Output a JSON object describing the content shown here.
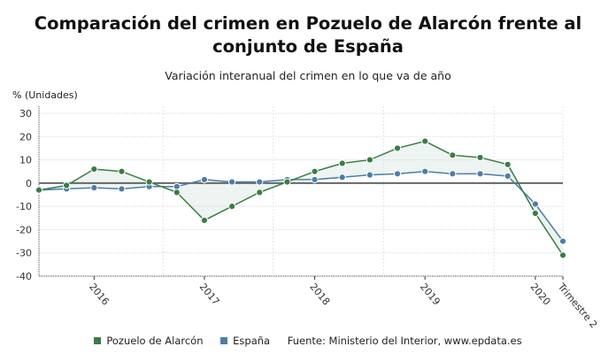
{
  "title": "Comparación del crimen en Pozuelo de Alarcón frente al conjunto de España",
  "subtitle": "Variación interanual del crimen en lo que va de año",
  "legend_source": "Fuente: Ministerio del Interior, www.epdata.es",
  "chart_data": {
    "type": "line",
    "title": "Comparación del crimen en Pozuelo de Alarcón frente al conjunto de España",
    "subtitle": "Variación interanual del crimen en lo que va de año",
    "ylabel": "% (Unidades)",
    "xlabel": "",
    "ylim": [
      -40,
      30
    ],
    "yticks": [
      30,
      20,
      10,
      0,
      -10,
      -20,
      -30,
      -40
    ],
    "x_tick_labels": [
      {
        "index": 2,
        "label": "2016"
      },
      {
        "index": 6,
        "label": "2017"
      },
      {
        "index": 10,
        "label": "2018"
      },
      {
        "index": 14,
        "label": "2019"
      },
      {
        "index": 18,
        "label": "2020"
      },
      {
        "index": 19,
        "label": "Trimestre 2"
      }
    ],
    "grid": true,
    "legend_position": "bottom",
    "series": [
      {
        "name": "Pozuelo de Alarcón",
        "color": "#3a7d44",
        "values": [
          -3,
          -1,
          6,
          5,
          0.5,
          -4,
          -16,
          -10,
          -4,
          0.5,
          5,
          8.5,
          10,
          15,
          18,
          12,
          11,
          8,
          -13,
          -31
        ]
      },
      {
        "name": "España",
        "color": "#4a7ea8",
        "values": [
          -3,
          -2.5,
          -2,
          -2.5,
          -1.5,
          -1.5,
          1.5,
          0.5,
          0.5,
          1.5,
          1.5,
          2.5,
          3.5,
          4,
          5,
          4,
          4,
          3,
          -9,
          -25
        ]
      }
    ]
  }
}
